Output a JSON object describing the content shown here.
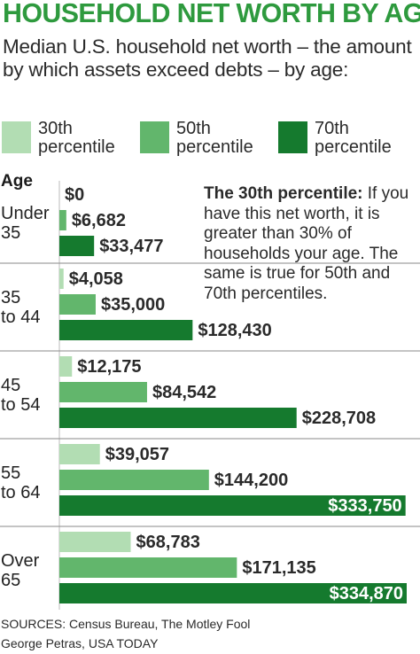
{
  "header": {
    "title": "HOUSEHOLD NET WORTH BY AGE",
    "subtitle": "Median U.S. household net worth – the amount by which assets exceed debts – by age:"
  },
  "legend": [
    {
      "label": "30th percentile",
      "color": "#b2ddb3"
    },
    {
      "label": "50th percentile",
      "color": "#62b66c"
    },
    {
      "label": "70th percentile",
      "color": "#157a2e"
    }
  ],
  "annotation": {
    "bold": "The 30th percentile:",
    "text": " If you have this net worth, it is greater than 30% of households your age. The same is true for 50th and 70th percentiles."
  },
  "footer": {
    "sources": "SOURCES:  Census  Bureau, The Motley Fool",
    "credit": "George Petras, USA TODAY"
  },
  "chart_data": {
    "type": "bar",
    "orientation": "horizontal",
    "category_header": "Age",
    "categories": [
      "Under 35",
      "35 to 44",
      "45 to 54",
      "55 to 64",
      "Over 65"
    ],
    "category_lines": [
      [
        "Under",
        "35"
      ],
      [
        "35",
        "to 44"
      ],
      [
        "45",
        "to 54"
      ],
      [
        "55",
        "to 64"
      ],
      [
        "Over",
        "65"
      ]
    ],
    "series": [
      {
        "name": "30th percentile",
        "color": "#b2ddb3",
        "values": [
          0,
          4058,
          12175,
          39057,
          68783
        ],
        "labels": [
          "$0",
          "$4,058",
          "$12,175",
          "$39,057",
          "$68,783"
        ]
      },
      {
        "name": "50th percentile",
        "color": "#62b66c",
        "values": [
          6682,
          35000,
          84542,
          144200,
          171135
        ],
        "labels": [
          "$6,682",
          "$35,000",
          "$84,542",
          "$144,200",
          "$171,135"
        ]
      },
      {
        "name": "70th percentile",
        "color": "#157a2e",
        "values": [
          33477,
          128430,
          228708,
          333750,
          334870
        ],
        "labels": [
          "$33,477",
          "$128,430",
          "$228,708",
          "$333,750",
          "$334,870"
        ]
      }
    ],
    "xlim": [
      0,
      334870
    ]
  }
}
